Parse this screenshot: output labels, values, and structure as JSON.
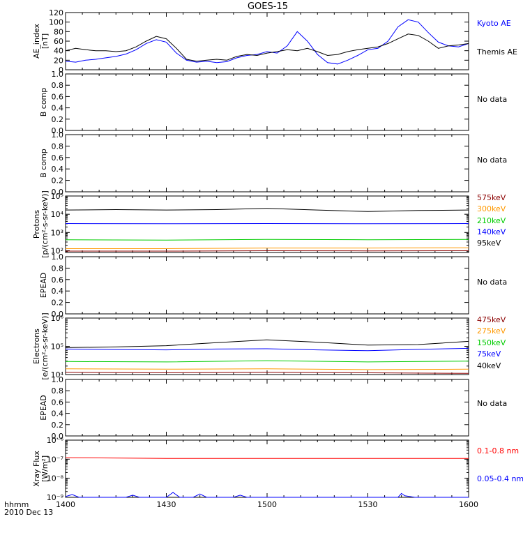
{
  "figure": {
    "title": "GOES-15",
    "footer_label": "hhmm",
    "footer_date": "2010 Dec 13",
    "x_ticks": [
      "1400",
      "1430",
      "1500",
      "1530",
      "1600"
    ],
    "x_range": [
      "14:00",
      "16:00"
    ]
  },
  "chart_data": [
    {
      "id": "ae",
      "type": "line",
      "ylabel": [
        "AE_index",
        "[nT]"
      ],
      "ylim": [
        0,
        120
      ],
      "y_ticks": [
        "0",
        "20",
        "40",
        "60",
        "80",
        "100",
        "120"
      ],
      "y_tick_values": [
        0,
        20,
        40,
        60,
        80,
        100,
        120
      ],
      "x_units": "minutes since 1400",
      "series": [
        {
          "name": "Kyoto AE",
          "color": "#0000ff",
          "x": [
            0,
            3,
            6,
            9,
            12,
            15,
            18,
            21,
            24,
            27,
            30,
            33,
            36,
            39,
            42,
            45,
            48,
            51,
            54,
            57,
            60,
            63,
            66,
            69,
            72,
            75,
            78,
            81,
            84,
            87,
            90,
            93,
            96,
            99,
            102,
            105,
            108,
            111,
            114,
            117,
            120
          ],
          "y": [
            18,
            16,
            20,
            22,
            25,
            28,
            33,
            42,
            55,
            63,
            58,
            35,
            20,
            16,
            18,
            15,
            17,
            25,
            30,
            32,
            38,
            35,
            50,
            80,
            60,
            32,
            15,
            12,
            20,
            30,
            42,
            45,
            60,
            90,
            105,
            100,
            78,
            58,
            50,
            48,
            55
          ]
        },
        {
          "name": "Themis AE",
          "color": "#000000",
          "x": [
            0,
            3,
            6,
            9,
            12,
            15,
            18,
            21,
            24,
            27,
            30,
            33,
            36,
            39,
            42,
            45,
            48,
            51,
            54,
            57,
            60,
            63,
            66,
            69,
            72,
            75,
            78,
            81,
            84,
            87,
            90,
            93,
            96,
            99,
            102,
            105,
            108,
            111,
            114,
            117,
            120
          ],
          "y": [
            40,
            45,
            42,
            40,
            40,
            38,
            40,
            48,
            60,
            70,
            65,
            45,
            22,
            18,
            20,
            22,
            20,
            28,
            32,
            30,
            35,
            38,
            42,
            40,
            45,
            38,
            30,
            32,
            38,
            42,
            45,
            48,
            55,
            65,
            75,
            72,
            60,
            45,
            50,
            52,
            55
          ]
        }
      ]
    },
    {
      "id": "bcomp1",
      "type": "line",
      "ylabel": [
        "B comp"
      ],
      "ylim": [
        0,
        1
      ],
      "y_ticks": [
        "0.0",
        "0.2",
        "0.4",
        "0.6",
        "0.8",
        "1.0"
      ],
      "y_tick_values": [
        0,
        0.2,
        0.4,
        0.6,
        0.8,
        1.0
      ],
      "note": "No data",
      "series": []
    },
    {
      "id": "bcomp2",
      "type": "line",
      "ylabel": [
        "B comp"
      ],
      "ylim": [
        0,
        1
      ],
      "y_ticks": [
        "0.0",
        "0.2",
        "0.4",
        "0.6",
        "0.8",
        "1.0"
      ],
      "y_tick_values": [
        0,
        0.2,
        0.4,
        0.6,
        0.8,
        1.0
      ],
      "note": "No data",
      "series": []
    },
    {
      "id": "protons",
      "type": "line",
      "scale": "log",
      "ylabel": [
        "Protons",
        "[p/(cm²-s-sr-keV)]"
      ],
      "ylim": [
        80,
        100000
      ],
      "y_ticks": [
        "10²",
        "10³",
        "10⁴",
        "10⁵"
      ],
      "y_tick_values": [
        100,
        1000,
        10000,
        100000
      ],
      "x_units": "minutes since 1400",
      "series": [
        {
          "name": "575keV",
          "color": "#8b0000",
          "x": [
            0,
            30,
            60,
            90,
            120
          ],
          "y": [
            95,
            95,
            100,
            98,
            100
          ]
        },
        {
          "name": "300keV",
          "color": "#ff9900",
          "x": [
            0,
            30,
            60,
            90,
            120
          ],
          "y": [
            130,
            130,
            140,
            140,
            145
          ]
        },
        {
          "name": "210keV",
          "color": "#00cc00",
          "x": [
            0,
            30,
            60,
            90,
            120
          ],
          "y": [
            400,
            380,
            420,
            400,
            420
          ]
        },
        {
          "name": "140keV",
          "color": "#0000ff",
          "x": [
            0,
            30,
            60,
            90,
            120
          ],
          "y": [
            3100,
            3000,
            3100,
            3000,
            3100
          ]
        },
        {
          "name": "95keV",
          "color": "#000000",
          "x": [
            0,
            15,
            30,
            45,
            60,
            75,
            90,
            105,
            120
          ],
          "y": [
            17000,
            18000,
            17000,
            18000,
            21000,
            17000,
            14000,
            16000,
            17000
          ]
        }
      ]
    },
    {
      "id": "epead1",
      "type": "line",
      "ylabel": [
        "EPEAD"
      ],
      "ylim": [
        0,
        1
      ],
      "y_ticks": [
        "0.0",
        "0.2",
        "0.4",
        "0.6",
        "0.8",
        "1.0"
      ],
      "y_tick_values": [
        0,
        0.2,
        0.4,
        0.6,
        0.8,
        1.0
      ],
      "note": "No data",
      "series": []
    },
    {
      "id": "electrons",
      "type": "line",
      "scale": "log",
      "ylabel": [
        "Electrons",
        "[e/(cm²-s-sr-keV)]"
      ],
      "ylim": [
        10000,
        1000000
      ],
      "y_ticks": [
        "10⁴",
        "10⁵",
        "10⁶"
      ],
      "y_tick_values": [
        10000,
        100000,
        1000000
      ],
      "x_units": "minutes since 1400",
      "series": [
        {
          "name": "475keV",
          "color": "#8b0000",
          "x": [
            0,
            30,
            60,
            90,
            120
          ],
          "y": [
            12000,
            11500,
            12000,
            11500,
            11000
          ]
        },
        {
          "name": "275keV",
          "color": "#ff9900",
          "x": [
            0,
            30,
            60,
            90,
            120
          ],
          "y": [
            16000,
            15500,
            16000,
            15000,
            15500
          ]
        },
        {
          "name": "150keV",
          "color": "#00cc00",
          "x": [
            0,
            30,
            60,
            90,
            120
          ],
          "y": [
            29000,
            28000,
            31000,
            28000,
            30000
          ]
        },
        {
          "name": "75keV",
          "color": "#0000ff",
          "x": [
            0,
            15,
            30,
            45,
            60,
            75,
            90,
            105,
            120
          ],
          "y": [
            80000,
            77000,
            75000,
            80000,
            82000,
            75000,
            70000,
            78000,
            85000
          ]
        },
        {
          "name": "40keV",
          "color": "#000000",
          "x": [
            0,
            15,
            30,
            45,
            60,
            75,
            90,
            105,
            120
          ],
          "y": [
            90000,
            95000,
            105000,
            135000,
            170000,
            140000,
            110000,
            115000,
            150000
          ]
        }
      ]
    },
    {
      "id": "epead2",
      "type": "line",
      "ylabel": [
        "EPEAD"
      ],
      "ylim": [
        0,
        1
      ],
      "y_ticks": [
        "0.0",
        "0.2",
        "0.4",
        "0.6",
        "0.8",
        "1.0"
      ],
      "y_tick_values": [
        0,
        0.2,
        0.4,
        0.6,
        0.8,
        1.0
      ],
      "note": "No data",
      "series": []
    },
    {
      "id": "xray",
      "type": "line",
      "scale": "log",
      "ylabel": [
        "Xray Flux",
        "[W/m²]"
      ],
      "ylim": [
        1e-09,
        1e-06
      ],
      "y_ticks": [
        "10⁻⁹",
        "10⁻⁸",
        "10⁻⁷",
        "10⁻⁶"
      ],
      "y_tick_values": [
        1e-09,
        1e-08,
        1e-07,
        1e-06
      ],
      "x_units": "minutes since 1400",
      "series": [
        {
          "name": "0.1-0.8 nm",
          "color": "#ff0000",
          "x": [
            0,
            30,
            60,
            90,
            120
          ],
          "y": [
            1.2e-07,
            1.1e-07,
            1.1e-07,
            1.1e-07,
            1.1e-07
          ]
        },
        {
          "name": "0.05-0.4 nm",
          "color": "#0000ff",
          "x": [
            0,
            2,
            4,
            6,
            10,
            18,
            20,
            22,
            30,
            32,
            34,
            38,
            40,
            42,
            44,
            50,
            52,
            54,
            60,
            70,
            80,
            90,
            99,
            100,
            101,
            104,
            110,
            120
          ],
          "y": [
            1.1e-09,
            1.4e-09,
            1e-09,
            1e-09,
            1e-09,
            1e-09,
            1.3e-09,
            1e-09,
            1e-09,
            1.8e-09,
            1e-09,
            1e-09,
            1.5e-09,
            1e-09,
            1e-09,
            1e-09,
            1.3e-09,
            1e-09,
            1e-09,
            1e-09,
            1e-09,
            1e-09,
            1e-09,
            1.6e-09,
            1.2e-09,
            1e-09,
            1e-09,
            1e-09
          ]
        }
      ]
    }
  ]
}
